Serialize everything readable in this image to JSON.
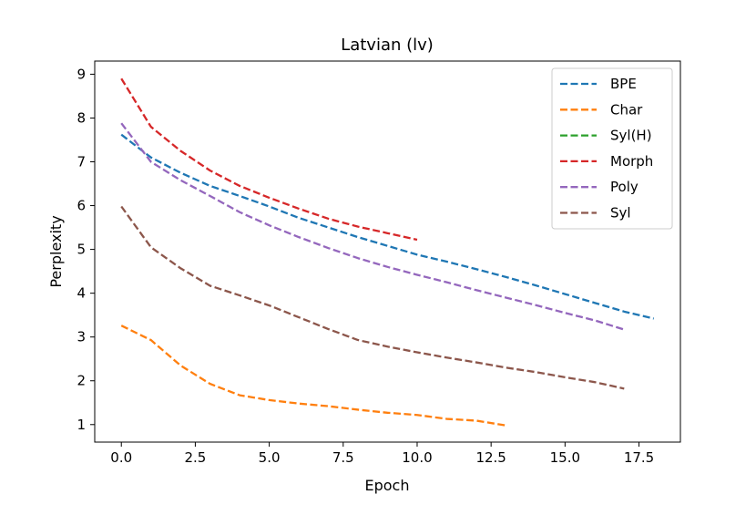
{
  "chart_data": {
    "type": "line",
    "title": "Latvian (lv)",
    "xlabel": "Epoch",
    "ylabel": "Perplexity",
    "xlim": [
      -0.9,
      18.9
    ],
    "ylim": [
      0.6,
      9.3
    ],
    "xticks": [
      0.0,
      2.5,
      5.0,
      7.5,
      10.0,
      12.5,
      15.0,
      17.5
    ],
    "xtick_labels": [
      "0.0",
      "2.5",
      "5.0",
      "7.5",
      "10.0",
      "12.5",
      "15.0",
      "17.5"
    ],
    "yticks": [
      1,
      2,
      3,
      4,
      5,
      6,
      7,
      8,
      9
    ],
    "ytick_labels": [
      "1",
      "2",
      "3",
      "4",
      "5",
      "6",
      "7",
      "8",
      "9"
    ],
    "grid": false,
    "legend_position": "top-right",
    "line_style": "dashed",
    "series": [
      {
        "name": "BPE",
        "color": "#1f77b4",
        "x": [
          0,
          1,
          2,
          3,
          4,
          5,
          6,
          7,
          8,
          9,
          10,
          11,
          12,
          13,
          14,
          15,
          16,
          17,
          18
        ],
        "y": [
          7.62,
          7.1,
          6.75,
          6.45,
          6.22,
          5.98,
          5.72,
          5.5,
          5.28,
          5.08,
          4.88,
          4.72,
          4.55,
          4.37,
          4.18,
          3.98,
          3.78,
          3.58,
          3.42
        ]
      },
      {
        "name": "Char",
        "color": "#ff7f0e",
        "x": [
          0,
          1,
          2,
          3,
          4,
          5,
          6,
          7,
          8,
          9,
          10,
          11,
          12,
          13
        ],
        "y": [
          3.26,
          2.93,
          2.35,
          1.93,
          1.67,
          1.56,
          1.48,
          1.42,
          1.34,
          1.27,
          1.22,
          1.13,
          1.09,
          0.98
        ]
      },
      {
        "name": "Syl(H)",
        "color": "#2ca02c",
        "x": [],
        "y": []
      },
      {
        "name": "Morph",
        "color": "#d62728",
        "x": [
          0,
          1,
          2,
          3,
          4,
          5,
          6,
          7,
          8,
          9,
          10
        ],
        "y": [
          8.9,
          7.8,
          7.25,
          6.8,
          6.45,
          6.18,
          5.93,
          5.7,
          5.52,
          5.37,
          5.22
        ]
      },
      {
        "name": "Poly",
        "color": "#9467bd",
        "x": [
          0,
          1,
          2,
          3,
          4,
          5,
          6,
          7,
          8,
          9,
          10,
          11,
          12,
          13,
          14,
          15,
          16,
          17
        ],
        "y": [
          7.88,
          7.0,
          6.58,
          6.22,
          5.85,
          5.55,
          5.28,
          5.03,
          4.8,
          4.6,
          4.42,
          4.25,
          4.07,
          3.9,
          3.73,
          3.55,
          3.38,
          3.17
        ]
      },
      {
        "name": "Syl",
        "color": "#8c564b",
        "x": [
          0,
          1,
          2,
          3,
          4,
          5,
          6,
          7,
          8,
          9,
          10,
          11,
          12,
          13,
          14,
          15,
          16,
          17
        ],
        "y": [
          5.98,
          5.05,
          4.57,
          4.17,
          3.95,
          3.72,
          3.45,
          3.18,
          2.93,
          2.78,
          2.65,
          2.53,
          2.42,
          2.3,
          2.2,
          2.08,
          1.97,
          1.82
        ]
      }
    ]
  }
}
